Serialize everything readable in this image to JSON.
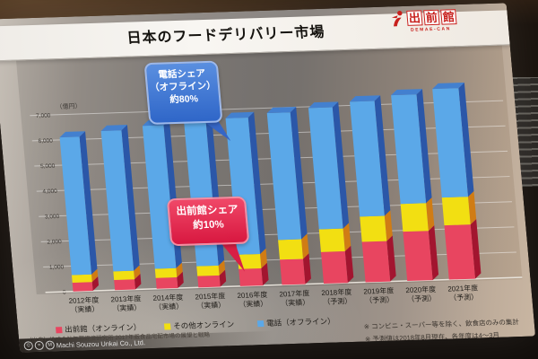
{
  "slide": {
    "title": "日本のフードデリバリー市場",
    "logo": {
      "kanji": [
        "出",
        "前",
        "館"
      ],
      "subtext": "DEMAE-CAN",
      "color": "#c8201d"
    },
    "y_axis_unit": "（億円）",
    "source": "（出典）株式会社矢野経済研究所 2017年版食品宅配市場の展望と戦略",
    "notes": {
      "note1": "※ コンビニ・スーパー等を除く、飲食店のみの集計",
      "note2": "※ 予測値は2018年8月現在、各年度は4～3月"
    },
    "watermark": "Machi Souzou Unkai Co., Ltd."
  },
  "chart_data": {
    "type": "bar",
    "stacked": true,
    "title": "日本のフードデリバリー市場",
    "ylabel": "（億円）",
    "ylim": [
      0,
      7000
    ],
    "yticks": [
      0,
      1000,
      2000,
      3000,
      4000,
      5000,
      6000,
      7000
    ],
    "grid": true,
    "legend_position": "bottom",
    "categories": [
      {
        "year": "2012年度",
        "status": "（実績）"
      },
      {
        "year": "2013年度",
        "status": "（実績）"
      },
      {
        "year": "2014年度",
        "status": "（実績）"
      },
      {
        "year": "2015年度",
        "status": "（実績）"
      },
      {
        "year": "2016年度",
        "status": "（実績）"
      },
      {
        "year": "2017年度",
        "status": "（実績）"
      },
      {
        "year": "2018年度",
        "status": "（予測）"
      },
      {
        "year": "2019年度",
        "status": "（予測）"
      },
      {
        "year": "2020年度",
        "status": "（予測）"
      },
      {
        "year": "2021年度",
        "status": "（予測）"
      }
    ],
    "series": [
      {
        "name": "出前館（オンライン）",
        "color": "#e84560",
        "side_color": "#a2152f",
        "top_color": "#c52a47",
        "values": [
          350,
          400,
          430,
          450,
          680,
          1000,
          1250,
          1600,
          1950,
          2150
        ]
      },
      {
        "name": "その他オンライン",
        "color": "#f2df12",
        "side_color": "#d07c14",
        "top_color": "#e0c40e",
        "values": [
          300,
          340,
          360,
          390,
          570,
          780,
          900,
          1000,
          1100,
          1100
        ]
      },
      {
        "name": "電話（オフライン）",
        "color": "#5ba8e8",
        "side_color": "#2b57a8",
        "top_color": "#4380cf",
        "values": [
          5450,
          5560,
          5660,
          5710,
          5400,
          5020,
          4800,
          4550,
          4300,
          4300
        ]
      }
    ],
    "annotations": [
      {
        "id": "phone-share",
        "line1": "電話シェア",
        "line2": "（オフライン）",
        "line3": "約80%",
        "color": "#3566c6",
        "target": "2016年度 電話（オフライン）"
      },
      {
        "id": "demaecan-share",
        "line1": "出前館シェア",
        "line2": "約10%",
        "color": "#d81f45",
        "target": "2016年度 出前館（オンライン）"
      }
    ]
  }
}
